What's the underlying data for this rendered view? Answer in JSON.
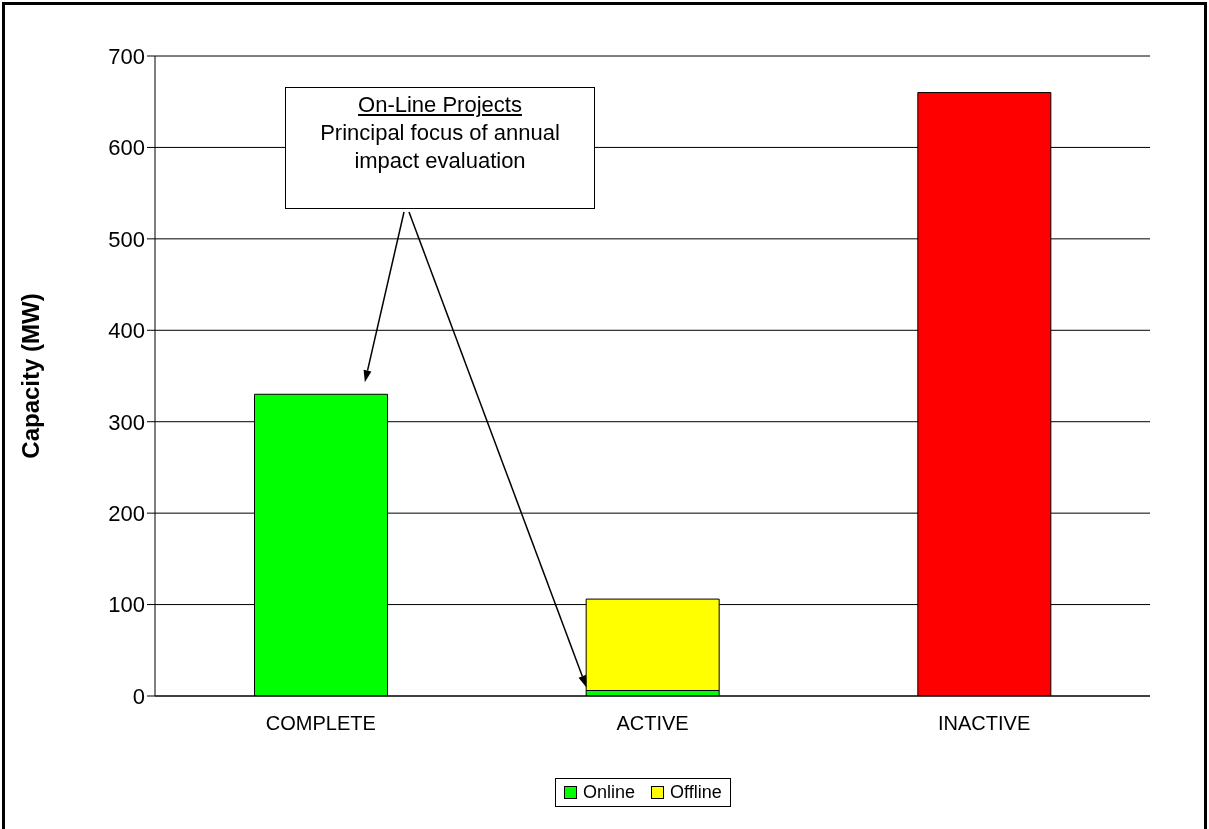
{
  "chart_data": {
    "type": "bar",
    "stacked": true,
    "categories": [
      "COMPLETE",
      "ACTIVE",
      "INACTIVE"
    ],
    "series": [
      {
        "name": "Online",
        "color": "#00ff00",
        "values": [
          330,
          6,
          null
        ]
      },
      {
        "name": "Offline",
        "color": "#ffff00",
        "colors": [
          "#ffff00",
          "#ffff00",
          "#ff0000"
        ],
        "values": [
          null,
          100,
          660
        ]
      }
    ],
    "ylabel": "Capacity (MW)",
    "ylim": [
      0,
      700
    ],
    "yticks": [
      0,
      100,
      200,
      300,
      400,
      500,
      600,
      700
    ],
    "grid": "y",
    "legend": "bottom",
    "annotations": [
      "On-Line Projects",
      "Principal focus of annual impact evaluation"
    ]
  }
}
